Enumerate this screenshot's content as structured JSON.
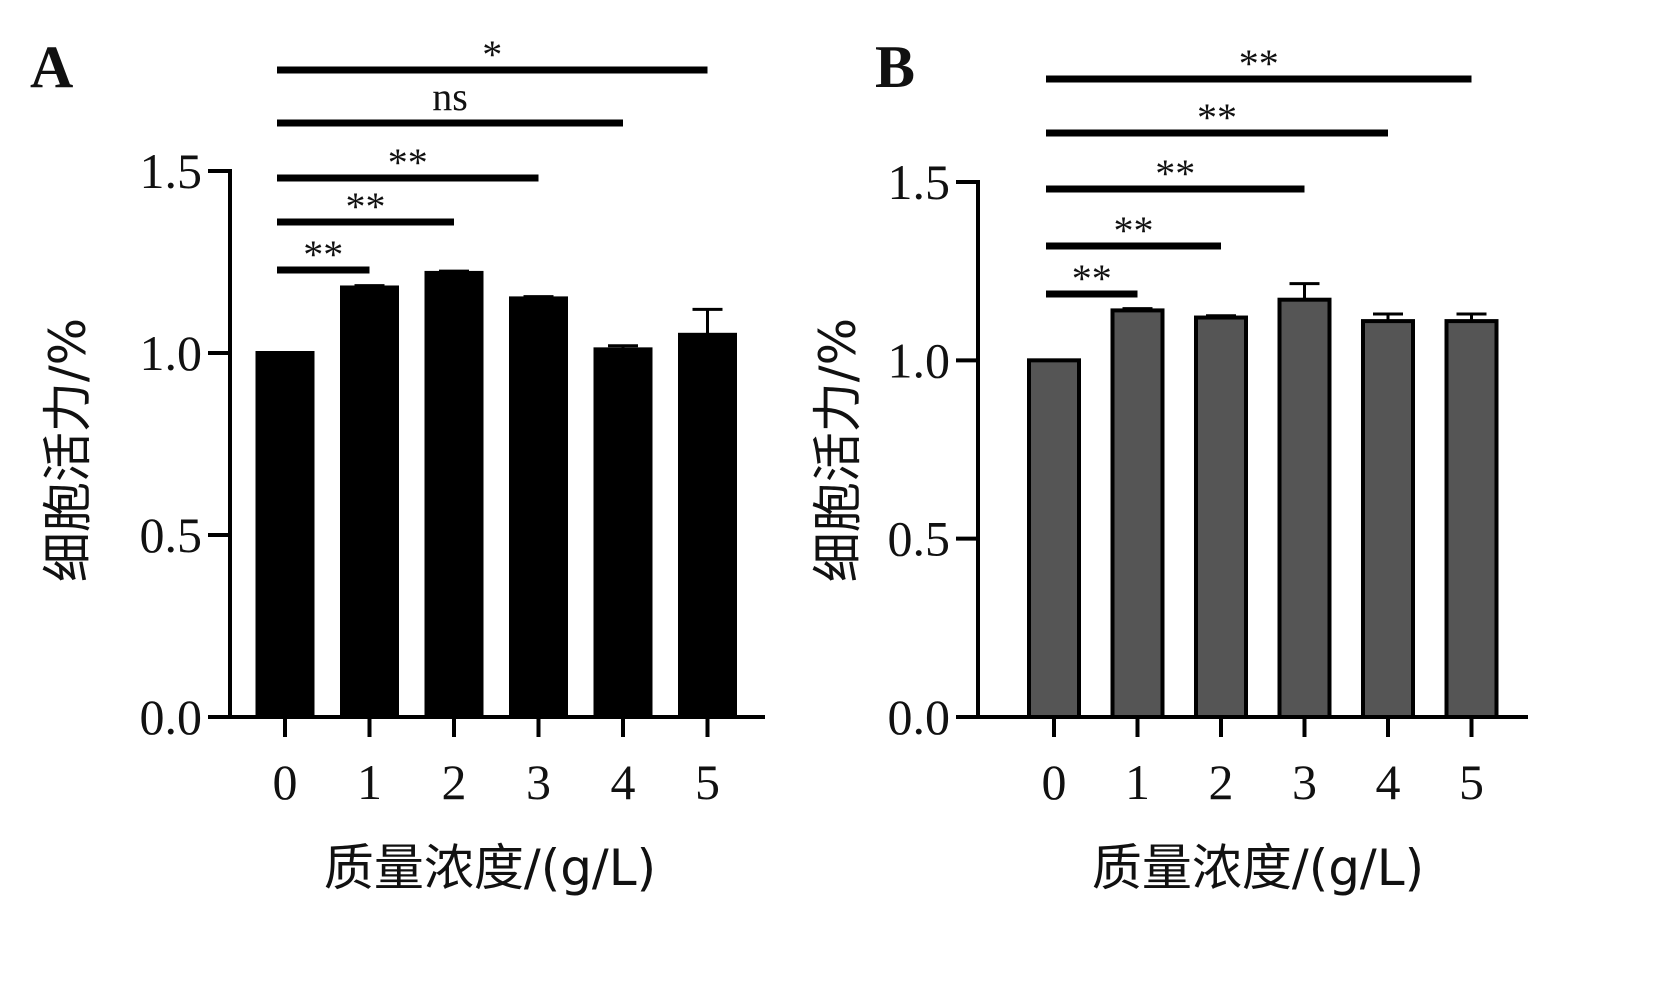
{
  "chart_data": [
    {
      "type": "bar",
      "panel": "A",
      "categories": [
        "0",
        "1",
        "2",
        "3",
        "4",
        "5"
      ],
      "values": [
        1.0,
        1.18,
        1.22,
        1.15,
        1.01,
        1.05
      ],
      "errors": [
        0.0,
        0.005,
        0.005,
        0.005,
        0.01,
        0.07
      ],
      "xlabel": "质量浓度/(g/L)",
      "ylabel": "细胞活力/%",
      "ylim": [
        0,
        1.5
      ],
      "yticks": [
        "0.0",
        "0.5",
        "1.0",
        "1.5"
      ],
      "bar_color": "#000000",
      "significance": [
        {
          "from": "0",
          "to": "1",
          "label": "**"
        },
        {
          "from": "0",
          "to": "2",
          "label": "**"
        },
        {
          "from": "0",
          "to": "3",
          "label": "**"
        },
        {
          "from": "0",
          "to": "4",
          "label": "ns"
        },
        {
          "from": "0",
          "to": "5",
          "label": "*"
        }
      ]
    },
    {
      "type": "bar",
      "panel": "B",
      "categories": [
        "0",
        "1",
        "2",
        "3",
        "4",
        "5"
      ],
      "values": [
        1.0,
        1.14,
        1.12,
        1.17,
        1.11,
        1.11
      ],
      "errors": [
        0.0,
        0.005,
        0.005,
        0.045,
        0.02,
        0.02
      ],
      "xlabel": "质量浓度/(g/L)",
      "ylabel": "细胞活力/%",
      "ylim": [
        0,
        1.5
      ],
      "yticks": [
        "0.0",
        "0.5",
        "1.0",
        "1.5"
      ],
      "bar_color": "#555555",
      "significance": [
        {
          "from": "0",
          "to": "1",
          "label": "**"
        },
        {
          "from": "0",
          "to": "2",
          "label": "**"
        },
        {
          "from": "0",
          "to": "3",
          "label": "**"
        },
        {
          "from": "0",
          "to": "4",
          "label": "**"
        },
        {
          "from": "0",
          "to": "5",
          "label": "**"
        }
      ]
    }
  ]
}
